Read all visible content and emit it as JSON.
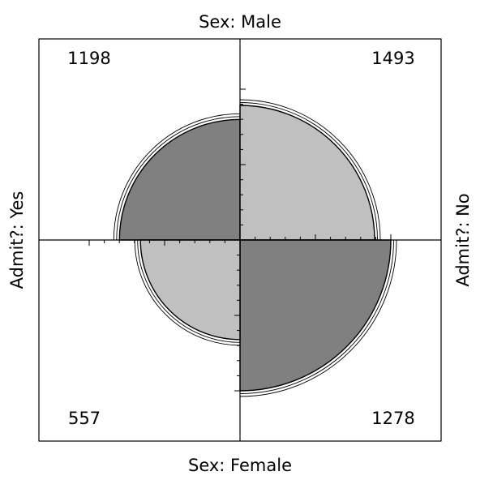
{
  "chart_data": {
    "type": "fourfold",
    "top_label": "Sex: Male",
    "bottom_label": "Sex: Female",
    "left_label": "Admit?: Yes",
    "right_label": "Admit?: No",
    "cells": [
      {
        "quadrant": "top-left",
        "row": "Male",
        "col": "Yes",
        "value": 1198
      },
      {
        "quadrant": "top-right",
        "row": "Male",
        "col": "No",
        "value": 1493
      },
      {
        "quadrant": "bottom-left",
        "row": "Female",
        "col": "Yes",
        "value": 557
      },
      {
        "quadrant": "bottom-right",
        "row": "Female",
        "col": "No",
        "value": 1278
      }
    ],
    "colors": {
      "dark": "#808080",
      "light": "#c0c0c0",
      "outline": "#000000"
    }
  }
}
